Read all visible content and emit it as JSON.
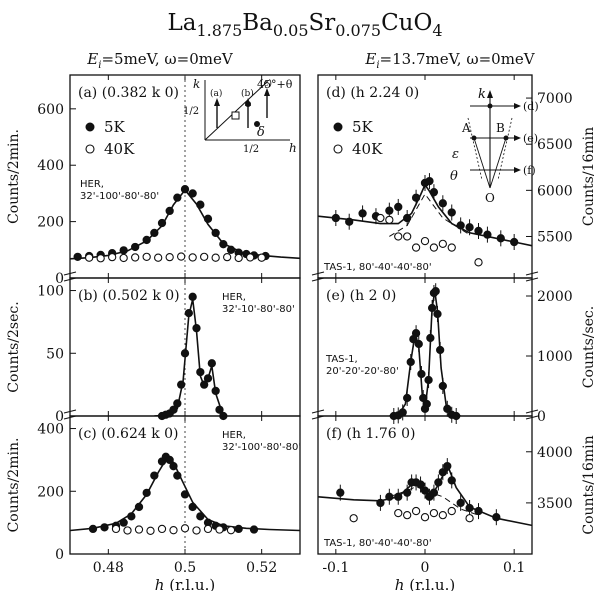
{
  "figure": {
    "title": "La1.875Ba0.05Sr0.075CuO4",
    "left_header": "Ei=5meV, ω=0meV",
    "right_header": "Ei=13.7meV, ω=0meV",
    "left_xlabel": "h (r.l.u.)",
    "right_xlabel": "h (r.l.u.)",
    "left_x_ticks": [
      "0.48",
      "0.5",
      "0.52"
    ],
    "right_x_ticks": [
      "-0.1",
      "0",
      "0.1"
    ]
  },
  "chart_data": [
    {
      "type": "scatter",
      "panel": "(a)",
      "label": "(a) (0.382 k 0)",
      "annotation": "HER, 32'-100'-80'-80'",
      "xlabel": "h (r.l.u.)",
      "ylabel": "Counts/2min.",
      "xlim": [
        0.47,
        0.53
      ],
      "ylim": [
        0,
        720
      ],
      "yticks": [
        0,
        200,
        400,
        600
      ],
      "legend": [
        "5K",
        "40K"
      ],
      "inset_labels": {
        "k": "k",
        "h": "h",
        "half_k": "1/2",
        "half_h": "1/2",
        "angle": "45°+θ",
        "delta": "δ",
        "a": "(a)",
        "b": "(b)",
        "c": "(c)"
      },
      "series": [
        {
          "name": "5K",
          "marker": "filled",
          "x": [
            0.472,
            0.475,
            0.478,
            0.481,
            0.484,
            0.487,
            0.49,
            0.492,
            0.494,
            0.496,
            0.498,
            0.5,
            0.502,
            0.504,
            0.506,
            0.508,
            0.51,
            0.512,
            0.514,
            0.516,
            0.518,
            0.521
          ],
          "y": [
            75,
            78,
            82,
            88,
            98,
            110,
            135,
            160,
            195,
            238,
            285,
            315,
            300,
            260,
            210,
            160,
            120,
            100,
            90,
            85,
            80,
            78
          ]
        },
        {
          "name": "40K",
          "marker": "open",
          "x": [
            0.475,
            0.478,
            0.481,
            0.484,
            0.487,
            0.49,
            0.493,
            0.496,
            0.499,
            0.502,
            0.505,
            0.508,
            0.511,
            0.514,
            0.517,
            0.52
          ],
          "y": [
            72,
            70,
            74,
            71,
            73,
            75,
            72,
            74,
            76,
            73,
            75,
            72,
            74,
            71,
            73,
            72
          ]
        }
      ],
      "fit": {
        "x": [
          0.47,
          0.475,
          0.48,
          0.485,
          0.49,
          0.494,
          0.497,
          0.5,
          0.503,
          0.506,
          0.51,
          0.515,
          0.52,
          0.525,
          0.53
        ],
        "y": [
          68,
          72,
          80,
          96,
          132,
          185,
          260,
          312,
          262,
          190,
          122,
          90,
          80,
          74,
          70
        ]
      }
    },
    {
      "type": "scatter",
      "panel": "(b)",
      "label": "(b) (0.502 k 0)",
      "annotation": "HER, 32'-10'-80'-80'",
      "xlabel": "h (r.l.u.)",
      "ylabel": "Counts/2sec.",
      "xlim": [
        0.47,
        0.53
      ],
      "ylim": [
        0,
        110
      ],
      "yticks": [
        0,
        50,
        100
      ],
      "series": [
        {
          "name": "5K",
          "marker": "filled",
          "x": [
            0.494,
            0.495,
            0.496,
            0.497,
            0.498,
            0.499,
            0.5,
            0.501,
            0.502,
            0.503,
            0.504,
            0.505,
            0.506,
            0.507,
            0.508,
            0.509,
            0.51
          ],
          "y": [
            0,
            1,
            2,
            5,
            10,
            25,
            50,
            82,
            95,
            70,
            35,
            25,
            30,
            42,
            20,
            5,
            0
          ]
        }
      ],
      "fit": {
        "x": [
          0.492,
          0.496,
          0.498,
          0.4995,
          0.501,
          0.502,
          0.503,
          0.504,
          0.505,
          0.506,
          0.507,
          0.508,
          0.51
        ],
        "y": [
          0,
          1,
          6,
          28,
          80,
          93,
          68,
          32,
          24,
          30,
          40,
          18,
          0
        ]
      }
    },
    {
      "type": "scatter",
      "panel": "(c)",
      "label": "(c) (0.624 k 0)",
      "annotation": "HER, 32'-100'-80'-80'",
      "xlabel": "h (r.l.u.)",
      "ylabel": "Counts/2min.",
      "xlim": [
        0.47,
        0.53
      ],
      "ylim": [
        0,
        440
      ],
      "yticks": [
        0,
        200,
        400
      ],
      "series": [
        {
          "name": "5K",
          "marker": "filled",
          "x": [
            0.476,
            0.479,
            0.482,
            0.484,
            0.486,
            0.488,
            0.49,
            0.492,
            0.494,
            0.495,
            0.496,
            0.497,
            0.498,
            0.5,
            0.502,
            0.504,
            0.506,
            0.508,
            0.51,
            0.514,
            0.518
          ],
          "y": [
            80,
            85,
            90,
            100,
            120,
            150,
            195,
            250,
            295,
            310,
            300,
            280,
            250,
            190,
            150,
            120,
            100,
            90,
            85,
            80,
            78
          ]
        },
        {
          "name": "40K",
          "marker": "open",
          "x": [
            0.482,
            0.485,
            0.488,
            0.491,
            0.494,
            0.497,
            0.5,
            0.503,
            0.506,
            0.509,
            0.512
          ],
          "y": [
            80,
            75,
            78,
            74,
            80,
            76,
            82,
            75,
            80,
            78,
            76
          ]
        }
      ],
      "fit": {
        "x": [
          0.47,
          0.476,
          0.482,
          0.486,
          0.49,
          0.493,
          0.495,
          0.4955,
          0.497,
          0.499,
          0.502,
          0.506,
          0.51,
          0.516,
          0.522,
          0.53
        ],
        "y": [
          75,
          82,
          98,
          128,
          190,
          260,
          300,
          305,
          292,
          240,
          165,
          110,
          90,
          82,
          78,
          75
        ]
      }
    },
    {
      "type": "scatter",
      "panel": "(d)",
      "label": "(d) (h 2.24 0)",
      "annotation": "TAS-1, 80'-40'-40'-80'",
      "xlabel": "h (r.l.u.)",
      "ylabel": "Counts/16min",
      "xlim": [
        -0.12,
        0.12
      ],
      "ylim": [
        5050,
        7250
      ],
      "yticks": [
        5500,
        6000,
        6500,
        7000
      ],
      "legend": [
        "5K",
        "40K"
      ],
      "inset_labels": {
        "k": "k",
        "A": "A",
        "B": "B",
        "O": "O",
        "epsilon": "ε",
        "theta": "θ",
        "d": "(d)",
        "e": "(e)",
        "f": "(f)"
      },
      "series": [
        {
          "name": "5K",
          "marker": "filled",
          "x": [
            -0.1,
            -0.085,
            -0.07,
            -0.055,
            -0.04,
            -0.03,
            -0.02,
            -0.01,
            0.0,
            0.005,
            0.01,
            0.02,
            0.03,
            0.04,
            0.05,
            0.06,
            0.07,
            0.085,
            0.1
          ],
          "y": [
            5700,
            5660,
            5750,
            5720,
            5780,
            5820,
            5700,
            5920,
            6080,
            6100,
            5980,
            5860,
            5760,
            5620,
            5600,
            5560,
            5520,
            5480,
            5440
          ]
        },
        {
          "name": "40K",
          "marker": "open",
          "x": [
            -0.05,
            -0.04,
            -0.03,
            -0.02,
            -0.01,
            0.0,
            0.01,
            0.02,
            0.03,
            0.06
          ],
          "y": [
            5700,
            5680,
            5500,
            5500,
            5380,
            5450,
            5380,
            5420,
            5380,
            5220
          ]
        }
      ],
      "fit": {
        "x": [
          -0.12,
          -0.08,
          -0.05,
          -0.03,
          -0.015,
          -0.005,
          0.0,
          0.005,
          0.015,
          0.03,
          0.05,
          0.08,
          0.1,
          0.12
        ],
        "y": [
          5720,
          5680,
          5640,
          5640,
          5750,
          5950,
          6060,
          5990,
          5820,
          5640,
          5540,
          5480,
          5440,
          5400
        ]
      }
    },
    {
      "type": "scatter",
      "panel": "(e)",
      "label": "(e) (h 2 0)",
      "annotation": "TAS-1, 20'-20'-20'-80'",
      "xlabel": "h (r.l.u.)",
      "ylabel": "Counts/sec.",
      "xlim": [
        -0.12,
        0.12
      ],
      "ylim": [
        0,
        2300
      ],
      "yticks": [
        0,
        1000,
        2000
      ],
      "series": [
        {
          "name": "5K",
          "marker": "filled",
          "x": [
            -0.035,
            -0.03,
            -0.025,
            -0.02,
            -0.016,
            -0.013,
            -0.01,
            -0.007,
            -0.004,
            -0.002,
            0.0,
            0.002,
            0.004,
            0.006,
            0.008,
            0.01,
            0.012,
            0.014,
            0.017,
            0.02,
            0.025,
            0.03,
            0.035
          ],
          "y": [
            0,
            10,
            60,
            300,
            900,
            1280,
            1380,
            1200,
            700,
            300,
            120,
            200,
            600,
            1300,
            1800,
            2050,
            2080,
            1700,
            1100,
            500,
            120,
            20,
            0
          ]
        }
      ],
      "fit": {
        "x": [
          -0.04,
          -0.03,
          -0.022,
          -0.016,
          -0.011,
          -0.007,
          -0.003,
          0.0,
          0.004,
          0.008,
          0.011,
          0.014,
          0.018,
          0.024,
          0.03,
          0.04
        ],
        "y": [
          0,
          15,
          200,
          900,
          1380,
          1150,
          350,
          120,
          620,
          1800,
          2080,
          1750,
          800,
          150,
          15,
          0
        ]
      }
    },
    {
      "type": "scatter",
      "panel": "(f)",
      "label": "(f) (h 1.76 0)",
      "annotation": "TAS-1, 80'-40'-40'-80'",
      "xlabel": "h (r.l.u.)",
      "ylabel": "Counts/16min",
      "xlim": [
        -0.12,
        0.12
      ],
      "ylim": [
        3000,
        4350
      ],
      "yticks": [
        3500,
        4000
      ],
      "series": [
        {
          "name": "5K",
          "marker": "filled",
          "x": [
            -0.095,
            -0.05,
            -0.04,
            -0.03,
            -0.02,
            -0.015,
            -0.01,
            -0.005,
            0.0,
            0.005,
            0.01,
            0.015,
            0.02,
            0.025,
            0.03,
            0.04,
            0.05,
            0.06,
            0.08
          ],
          "y": [
            3600,
            3500,
            3560,
            3560,
            3600,
            3700,
            3700,
            3680,
            3620,
            3560,
            3600,
            3700,
            3800,
            3860,
            3720,
            3500,
            3450,
            3420,
            3360
          ]
        },
        {
          "name": "40K",
          "marker": "open",
          "x": [
            -0.08,
            -0.03,
            -0.02,
            -0.01,
            0.0,
            0.01,
            0.02,
            0.03,
            0.05
          ],
          "y": [
            3350,
            3400,
            3380,
            3420,
            3360,
            3400,
            3380,
            3420,
            3350
          ]
        }
      ],
      "fit": {
        "x": [
          -0.12,
          -0.08,
          -0.05,
          -0.03,
          -0.02,
          -0.012,
          -0.005,
          0.0,
          0.008,
          0.015,
          0.022,
          0.027,
          0.035,
          0.05,
          0.08,
          0.12
        ],
        "y": [
          3560,
          3530,
          3520,
          3560,
          3640,
          3700,
          3680,
          3600,
          3580,
          3680,
          3800,
          3830,
          3650,
          3460,
          3350,
          3280
        ]
      }
    }
  ]
}
